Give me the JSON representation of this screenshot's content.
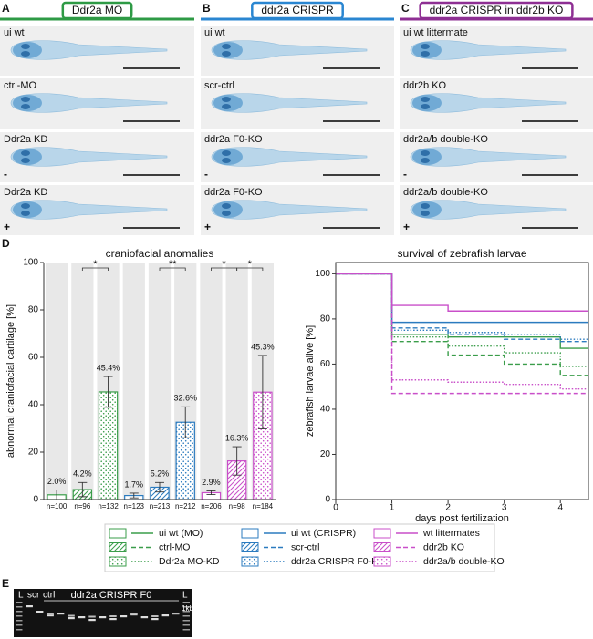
{
  "panels": [
    {
      "letter": "A",
      "header": "Ddr2a MO",
      "color": "#2e9a45",
      "images": [
        {
          "label": "ui wt"
        },
        {
          "label": "ctrl-MO"
        },
        {
          "label": "Ddr2a KD",
          "sign": "-"
        },
        {
          "label": "Ddr2a KD",
          "sign": "+"
        }
      ]
    },
    {
      "letter": "B",
      "header": "ddr2a CRISPR",
      "color": "#2a86d1",
      "images": [
        {
          "label": "ui wt"
        },
        {
          "label": "scr-ctrl"
        },
        {
          "label": "ddr2a F0-KO",
          "sign": "-"
        },
        {
          "label": "ddr2a F0-KO",
          "sign": "+"
        }
      ]
    },
    {
      "letter": "C",
      "header": "ddr2a CRISPR in ddr2b KO",
      "color": "#8e2f93",
      "images": [
        {
          "label": "ui wt littermate"
        },
        {
          "label": "ddr2b KO"
        },
        {
          "label": "ddr2a/b double-KO",
          "sign": "-"
        },
        {
          "label": "ddr2a/b double-KO",
          "sign": "+"
        }
      ]
    }
  ],
  "panel_d_letter": "D",
  "chart_data": [
    {
      "type": "bar",
      "title": "craniofacial anomalies",
      "y_label": "abnormal craniofacial cartilage [%]",
      "categories": [
        "n=100",
        "n=96",
        "n=132",
        "n=123",
        "n=213",
        "n=212",
        "n=206",
        "n=98",
        "n=184"
      ],
      "values": [
        2.0,
        4.2,
        45.4,
        1.7,
        5.2,
        32.6,
        2.9,
        16.3,
        45.3
      ],
      "value_labels": [
        "2.0%",
        "4.2%",
        "45.4%",
        "1.7%",
        "5.2%",
        "32.6%",
        "2.9%",
        "16.3%",
        "45.3%"
      ],
      "errors": [
        2,
        3,
        6.5,
        1,
        2,
        6.5,
        0.8,
        6,
        15.5
      ],
      "colors": [
        "#3a9d4a",
        "#3a9d4a",
        "#3a9d4a",
        "#2b7bbf",
        "#2b7bbf",
        "#2b7bbf",
        "#c94fc9",
        "#c94fc9",
        "#c94fc9"
      ],
      "patterns": [
        "open",
        "hatch",
        "dots",
        "open",
        "hatch",
        "dots",
        "open",
        "hatch",
        "dots"
      ],
      "ylim": [
        0,
        100
      ],
      "yticks": [
        0,
        20,
        40,
        60,
        80,
        100
      ],
      "significance": [
        {
          "text": "*",
          "bars": [
            1,
            2
          ]
        },
        {
          "text": "**",
          "bars": [
            4,
            5
          ]
        },
        {
          "text": "*",
          "bars": [
            6,
            7
          ]
        },
        {
          "text": "*",
          "bars": [
            7,
            8
          ]
        }
      ]
    },
    {
      "type": "line",
      "title": "survival of zebrafish larvae",
      "x_label": "days post fertilization",
      "y_label": "zebrafish larvae alive [%]",
      "x": [
        0,
        1,
        2,
        3,
        4
      ],
      "xlim": [
        0,
        4.5
      ],
      "xticks": [
        0,
        1,
        2,
        3,
        4
      ],
      "ylim": [
        0,
        105
      ],
      "yticks": [
        0,
        20,
        40,
        60,
        80,
        100
      ],
      "series": [
        {
          "name": "ui wt (MO)",
          "color": "#3a9d4a",
          "dash": "solid",
          "values": [
            100,
            73,
            72,
            72,
            67
          ]
        },
        {
          "name": "ctrl-MO",
          "color": "#3a9d4a",
          "dash": "dashed",
          "values": [
            100,
            70,
            64,
            60,
            55
          ]
        },
        {
          "name": "Ddr2a MO-KD",
          "color": "#3a9d4a",
          "dash": "dotted",
          "values": [
            100,
            72,
            68,
            65,
            59
          ]
        },
        {
          "name": "ui wt (CRISPR)",
          "color": "#2b7bbf",
          "dash": "solid",
          "values": [
            100,
            78.5,
            78.5,
            78.5,
            78.5
          ]
        },
        {
          "name": "scr-ctrl",
          "color": "#2b7bbf",
          "dash": "dashed",
          "values": [
            100,
            76,
            73,
            71,
            70
          ]
        },
        {
          "name": "ddr2a CRISPR F0-KO",
          "color": "#2b7bbf",
          "dash": "dotted",
          "values": [
            100,
            75,
            74,
            73,
            71
          ]
        },
        {
          "name": "wt littermates",
          "color": "#c94fc9",
          "dash": "solid",
          "values": [
            100,
            86,
            83.5,
            83.5,
            83.5
          ]
        },
        {
          "name": "ddr2b KO",
          "color": "#c94fc9",
          "dash": "dashed",
          "values": [
            100,
            47,
            47,
            47,
            47
          ]
        },
        {
          "name": "ddr2a/b double-KO",
          "color": "#c94fc9",
          "dash": "dotted",
          "values": [
            100,
            53,
            52,
            51,
            49
          ]
        }
      ]
    }
  ],
  "gel": {
    "letter": "E",
    "lanes": [
      "L",
      "scr",
      "ctrl"
    ],
    "group": "ddr2a CRISPR F0",
    "end_lane": "L",
    "marker": "1kb"
  }
}
